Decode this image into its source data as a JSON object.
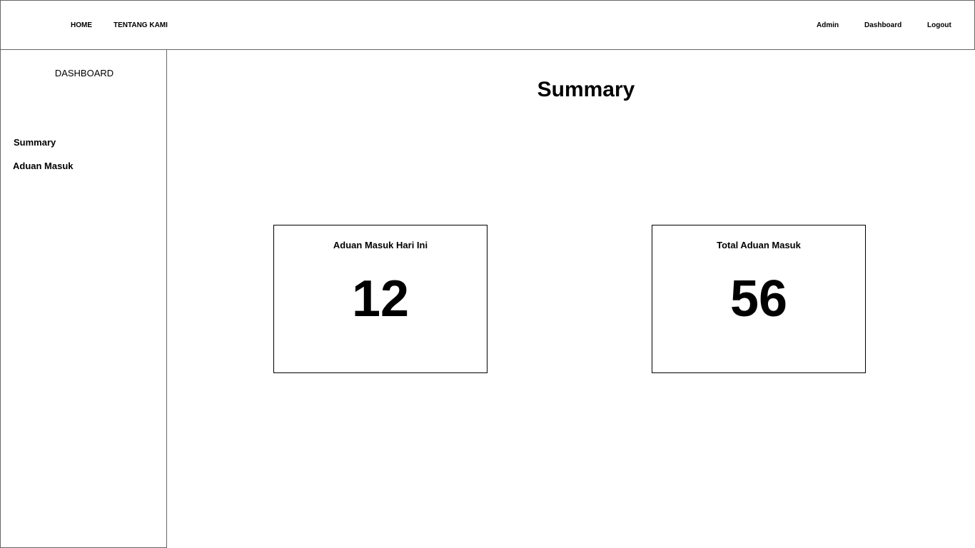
{
  "topbar": {
    "left_links": [
      "HOME",
      "TENTANG KAMI"
    ],
    "right_links": [
      "Admin",
      "Dashboard",
      "Logout"
    ]
  },
  "sidebar": {
    "title": "DASHBOARD",
    "items": [
      {
        "label": "Summary"
      },
      {
        "label": "Aduan Masuk"
      }
    ]
  },
  "main": {
    "title": "Summary",
    "cards": [
      {
        "label": "Aduan Masuk Hari Ini",
        "value": "12"
      },
      {
        "label": "Total Aduan Masuk",
        "value": "56"
      }
    ]
  },
  "colors": {
    "background": "#ffffff",
    "border": "#666666",
    "text": "#000000"
  }
}
